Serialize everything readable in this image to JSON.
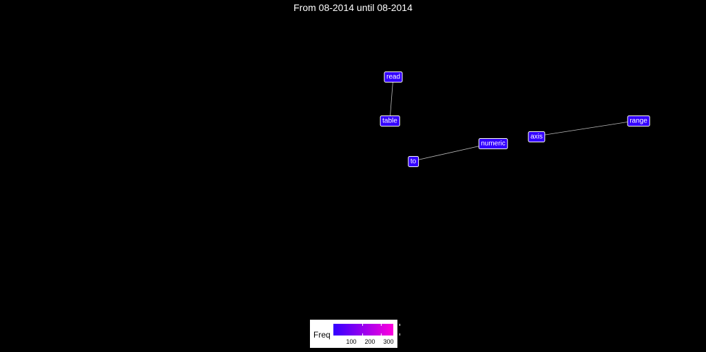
{
  "title": "From 08-2014 until 08-2014",
  "chart_data": {
    "type": "network",
    "nodes": [
      {
        "id": "read",
        "label": "read",
        "color": "#3300ff"
      },
      {
        "id": "table",
        "label": "table",
        "color": "#3300ff"
      },
      {
        "id": "numeric",
        "label": "numeric",
        "color": "#3300ff"
      },
      {
        "id": "to",
        "label": "to",
        "color": "#3300ff"
      },
      {
        "id": "axis",
        "label": "axis",
        "color": "#3300ff"
      },
      {
        "id": "range",
        "label": "range",
        "color": "#3300ff"
      }
    ],
    "edges": [
      {
        "source": "read",
        "target": "table"
      },
      {
        "source": "to",
        "target": "numeric"
      },
      {
        "source": "axis",
        "target": "range"
      }
    ],
    "legend": {
      "title": "Freq",
      "gradient": [
        "#3300ff",
        "#ff00dd"
      ],
      "ticks": [
        "100",
        "200",
        "300"
      ]
    }
  }
}
